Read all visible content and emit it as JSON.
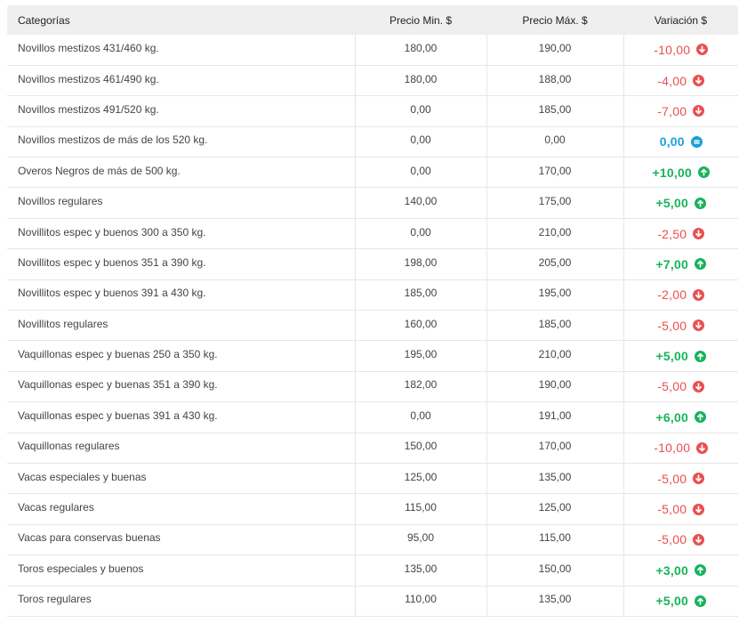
{
  "table": {
    "headers": {
      "category": "Categorías",
      "min": "Precio Min. $",
      "max": "Precio Máx. $",
      "variation": "Variación $"
    },
    "rows": [
      {
        "category": "Novillos mestizos 431/460 kg.",
        "min": "180,00",
        "max": "190,00",
        "variation": "-10,00",
        "trend": "down"
      },
      {
        "category": "Novillos mestizos 461/490 kg.",
        "min": "180,00",
        "max": "188,00",
        "variation": "-4,00",
        "trend": "down"
      },
      {
        "category": "Novillos mestizos 491/520 kg.",
        "min": "0,00",
        "max": "185,00",
        "variation": "-7,00",
        "trend": "down"
      },
      {
        "category": "Novillos mestizos de más de los 520 kg.",
        "min": "0,00",
        "max": "0,00",
        "variation": "0,00",
        "trend": "equal"
      },
      {
        "category": "Overos Negros de más de 500 kg.",
        "min": "0,00",
        "max": "170,00",
        "variation": "+10,00",
        "trend": "up"
      },
      {
        "category": "Novillos regulares",
        "min": "140,00",
        "max": "175,00",
        "variation": "+5,00",
        "trend": "up"
      },
      {
        "category": "Novillitos espec y buenos 300 a 350 kg.",
        "min": "0,00",
        "max": "210,00",
        "variation": "-2,50",
        "trend": "down"
      },
      {
        "category": "Novillitos espec y buenos 351 a 390 kg.",
        "min": "198,00",
        "max": "205,00",
        "variation": "+7,00",
        "trend": "up"
      },
      {
        "category": "Novillitos espec y buenos 391 a 430 kg.",
        "min": "185,00",
        "max": "195,00",
        "variation": "-2,00",
        "trend": "down"
      },
      {
        "category": "Novillitos regulares",
        "min": "160,00",
        "max": "185,00",
        "variation": "-5,00",
        "trend": "down"
      },
      {
        "category": "Vaquillonas espec y buenas 250 a 350 kg.",
        "min": "195,00",
        "max": "210,00",
        "variation": "+5,00",
        "trend": "up"
      },
      {
        "category": "Vaquillonas espec y buenas 351 a 390 kg.",
        "min": "182,00",
        "max": "190,00",
        "variation": "-5,00",
        "trend": "down"
      },
      {
        "category": "Vaquillonas espec y buenas 391 a 430 kg.",
        "min": "0,00",
        "max": "191,00",
        "variation": "+6,00",
        "trend": "up"
      },
      {
        "category": "Vaquillonas regulares",
        "min": "150,00",
        "max": "170,00",
        "variation": "-10,00",
        "trend": "down"
      },
      {
        "category": "Vacas especiales y buenas",
        "min": "125,00",
        "max": "135,00",
        "variation": "-5,00",
        "trend": "down"
      },
      {
        "category": "Vacas regulares",
        "min": "115,00",
        "max": "125,00",
        "variation": "-5,00",
        "trend": "down"
      },
      {
        "category": "Vacas para conservas buenas",
        "min": "95,00",
        "max": "115,00",
        "variation": "-5,00",
        "trend": "down"
      },
      {
        "category": "Toros especiales y buenos",
        "min": "135,00",
        "max": "150,00",
        "variation": "+3,00",
        "trend": "up"
      },
      {
        "category": "Toros regulares",
        "min": "110,00",
        "max": "135,00",
        "variation": "+5,00",
        "trend": "up"
      }
    ]
  },
  "icons": {
    "down": "arrow-down-circle-icon",
    "up": "arrow-up-circle-icon",
    "equal": "equal-circle-icon"
  },
  "colors": {
    "down": "#ea4f4f",
    "up": "#17b35b",
    "equal": "#1aa0d8",
    "header_bg": "#efefef"
  }
}
